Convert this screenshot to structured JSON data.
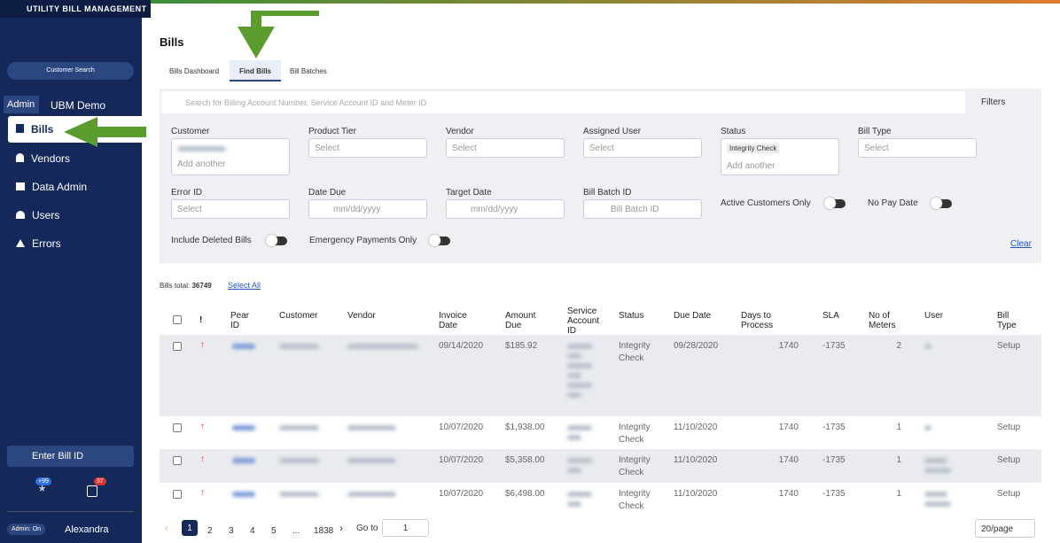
{
  "header": {
    "brand": "UTILITY BILL MANAGEMENT"
  },
  "sidebar": {
    "customer_search": "Customer Search",
    "admin_tab": "Admin",
    "customer_name": "UBM Demo",
    "nav": [
      "Bills",
      "Vendors",
      "Data Admin",
      "Users",
      "Errors"
    ],
    "enter_bill_id": "Enter Bill ID",
    "badge_notifications": "+99",
    "badge_bills": "37",
    "admin_status": "Admin: On",
    "user_name": "Alexandra"
  },
  "page": {
    "title": "Bills",
    "tabs": [
      "Bills Dashboard",
      "Find Bills",
      "Bill Batches"
    ]
  },
  "search": {
    "placeholder": "Search for Billing Account Number, Service Account ID and Meter ID",
    "filters": "Filters"
  },
  "filters": {
    "customer": "Customer",
    "customer_add": "Add another",
    "product_tier": "Product Tier",
    "product_tier_value": "Select",
    "vendor": "Vendor",
    "vendor_value": "Select",
    "assigned_user": "Assigned User",
    "assigned_user_value": "Select",
    "status": "Status",
    "status_chip": "Integrity Check",
    "status_add": "Add another",
    "bill_type": "Bill Type",
    "bill_type_value": "Select",
    "error_id": "Error ID",
    "error_id_value": "Select",
    "date_due": "Date Due",
    "date_due_value": "mm/dd/yyyy",
    "target_date": "Target Date",
    "target_date_value": "mm/dd/yyyy",
    "bill_batch_id": "Bill Batch ID",
    "bill_batch_id_value": "Bill Batch ID",
    "active_customers_only": "Active Customers Only",
    "no_pay_date": "No Pay Date",
    "include_deleted_bills": "Include Deleted Bills",
    "emergency_payments_only": "Emergency Payments Only",
    "clear": "Clear"
  },
  "summary": {
    "label": "Bills total:",
    "total": "36749",
    "select_all": "Select All"
  },
  "table": {
    "columns": [
      "!",
      "Pear ID",
      "Customer",
      "Vendor",
      "Invoice Date",
      "Amount Due",
      "Service Account ID",
      "Status",
      "Due Date",
      "Days to Process",
      "SLA",
      "No of Meters",
      "User",
      "Bill Type"
    ],
    "rows": [
      {
        "invoice_date": "09/14/2020",
        "amount_due": "$185.92",
        "status": "Integrity Check",
        "due_date": "09/28/2020",
        "days_to_process": "1740",
        "sla": "-1735",
        "meters": "2",
        "bill_type": "Setup"
      },
      {
        "invoice_date": "10/07/2020",
        "amount_due": "$1,938.00",
        "status": "Integrity Check",
        "due_date": "11/10/2020",
        "days_to_process": "1740",
        "sla": "-1735",
        "meters": "1",
        "bill_type": "Setup"
      },
      {
        "invoice_date": "10/07/2020",
        "amount_due": "$5,358.00",
        "status": "Integrity Check",
        "due_date": "11/10/2020",
        "days_to_process": "1740",
        "sla": "-1735",
        "meters": "1",
        "bill_type": "Setup"
      },
      {
        "invoice_date": "10/07/2020",
        "amount_due": "$6,498.00",
        "status": "Integrity Check",
        "due_date": "11/10/2020",
        "days_to_process": "1740",
        "sla": "-1735",
        "meters": "1",
        "bill_type": "Setup"
      }
    ]
  },
  "pagination": {
    "pages": [
      "1",
      "2",
      "3",
      "4",
      "5",
      "...",
      "1838"
    ],
    "goto": "Go to",
    "goto_value": "1",
    "page_size": "20/page"
  }
}
